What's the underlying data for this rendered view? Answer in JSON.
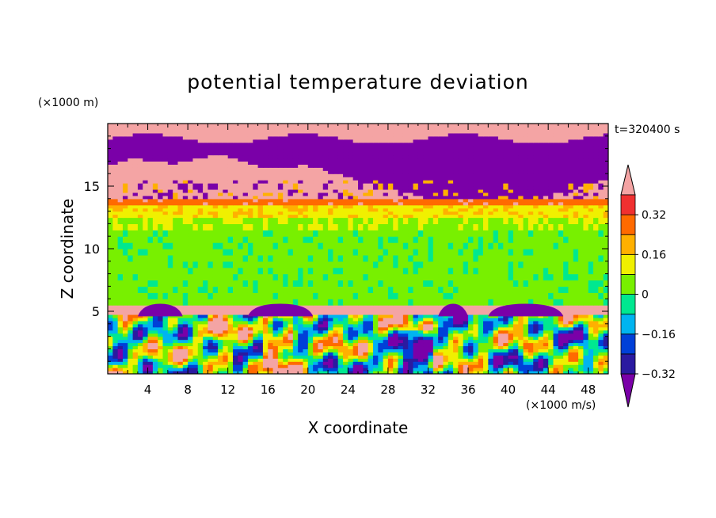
{
  "chart_data": {
    "type": "heatmap",
    "title": "potential temperature deviation",
    "xlabel": "X coordinate",
    "ylabel": "Z coordinate",
    "x_unit": "(×1000 m/s)",
    "y_unit": "(×1000 m)",
    "time_label": "t=320400 s",
    "xlim": [
      0,
      50
    ],
    "ylim": [
      0,
      20
    ],
    "x_ticks": [
      4,
      8,
      12,
      16,
      20,
      24,
      28,
      32,
      36,
      40,
      44,
      48
    ],
    "y_ticks": [
      5,
      10,
      15
    ],
    "grid": false,
    "colorbar": {
      "labels": [
        "0.32",
        "0.16",
        "0",
        "−0.16",
        "−0.32"
      ],
      "label_values": [
        0.32,
        0.16,
        0,
        -0.16,
        -0.32
      ],
      "levels": [
        -0.4,
        -0.32,
        -0.24,
        -0.16,
        -0.08,
        0,
        0.08,
        0.16,
        0.24,
        0.32,
        0.4
      ],
      "colors": [
        "#7a00a8",
        "#2a1aa0",
        "#0040d8",
        "#00b4f0",
        "#00e890",
        "#78f000",
        "#f0f000",
        "#ffb000",
        "#ff6a00",
        "#f03030",
        "#f4a4a4"
      ],
      "extend": "both"
    },
    "layers": [
      {
        "z": [
          0,
          4.8
        ],
        "description_values": "mixed -0.32 to 0.32"
      },
      {
        "z": [
          4.8,
          5.6
        ],
        "value": 0.4
      },
      {
        "z": [
          5.6,
          12.5
        ],
        "value": 0.02
      },
      {
        "z": [
          12.5,
          13.5
        ],
        "value": 0.16
      },
      {
        "z": [
          13.5,
          14.2
        ],
        "value": 0.32
      },
      {
        "z": [
          14.2,
          16.5
        ],
        "value": 0.4
      },
      {
        "z": [
          16.5,
          18.8
        ],
        "value": -0.4
      },
      {
        "z": [
          18.8,
          20
        ],
        "value": 0.4
      }
    ]
  }
}
